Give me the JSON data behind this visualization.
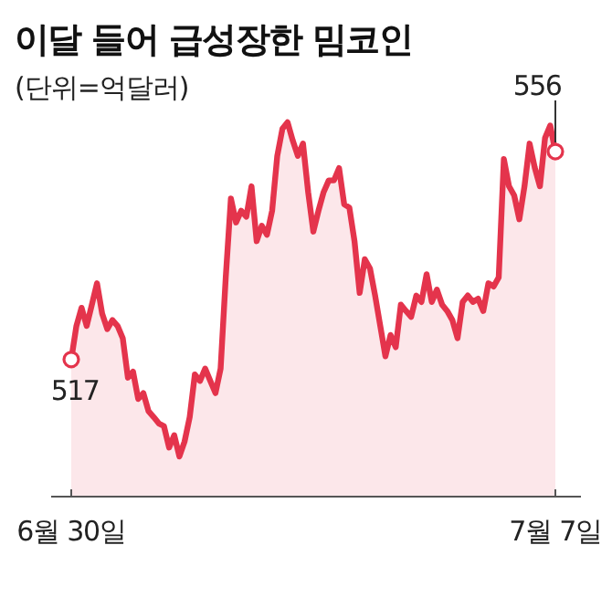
{
  "chart_data": {
    "type": "area",
    "title": "이달 들어 급성장한 밈코인",
    "subtitle": "(단위=억달러)",
    "categories": [
      "6월 30일",
      null,
      null,
      null,
      null,
      null,
      null,
      null,
      null,
      null,
      null,
      null,
      null,
      null,
      null,
      null,
      null,
      null,
      null,
      null,
      null,
      null,
      null,
      null,
      null,
      null,
      null,
      null,
      null,
      null,
      null,
      null,
      null,
      null,
      null,
      null,
      null,
      null,
      null,
      null,
      null,
      null,
      null,
      null,
      null,
      null,
      null,
      null,
      null,
      null,
      null,
      null,
      null,
      null,
      null,
      null,
      null,
      null,
      null,
      null,
      null,
      null,
      null,
      null,
      null,
      null,
      null,
      null,
      null,
      null,
      null,
      null,
      null,
      null,
      null,
      null,
      null,
      null,
      null,
      null,
      null,
      null,
      null,
      null,
      null,
      null,
      null,
      null,
      null,
      null,
      null,
      null,
      null,
      null,
      "7월 7일"
    ],
    "values": [
      517.0,
      523.3,
      526.7,
      523.3,
      527.3,
      531.3,
      525.6,
      522.7,
      524.4,
      523.3,
      521.0,
      513.6,
      514.7,
      509.6,
      510.7,
      507.3,
      506.2,
      505.0,
      504.5,
      500.5,
      502.8,
      498.8,
      501.6,
      506.2,
      514.2,
      513.0,
      515.3,
      513.0,
      510.7,
      515.3,
      532.4,
      547.2,
      542.7,
      544.9,
      543.8,
      549.5,
      539.2,
      542.1,
      540.4,
      544.9,
      555.2,
      560.3,
      561.5,
      558.1,
      555.2,
      557.5,
      548.4,
      541.0,
      544.9,
      548.4,
      550.6,
      550.6,
      552.9,
      546.1,
      545.5,
      539.2,
      529.5,
      535.8,
      534.1,
      529.0,
      523.3,
      517.6,
      521.6,
      519.3,
      527.3,
      526.1,
      525.0,
      529.0,
      527.8,
      533.0,
      527.8,
      530.1,
      527.3,
      526.1,
      524.4,
      521.0,
      527.8,
      529.0,
      527.8,
      528.4,
      526.1,
      531.3,
      530.7,
      532.4,
      554.6,
      549.5,
      547.8,
      543.3,
      549.5,
      557.5,
      553.0,
      549.5,
      558.6,
      560.9,
      556.0
    ],
    "value_labels": [
      "517",
      null,
      null,
      null,
      null,
      null,
      null,
      null,
      null,
      null,
      null,
      null,
      null,
      null,
      null,
      null,
      null,
      null,
      null,
      null,
      null,
      null,
      null,
      null,
      null,
      null,
      null,
      null,
      null,
      null,
      null,
      null,
      null,
      null,
      null,
      null,
      null,
      null,
      null,
      null,
      null,
      null,
      null,
      null,
      null,
      null,
      null,
      null,
      null,
      null,
      null,
      null,
      null,
      null,
      null,
      null,
      null,
      null,
      null,
      null,
      null,
      null,
      null,
      null,
      null,
      null,
      null,
      null,
      null,
      null,
      null,
      null,
      null,
      null,
      null,
      null,
      null,
      null,
      null,
      null,
      null,
      null,
      null,
      null,
      null,
      null,
      null,
      null,
      null,
      null,
      null,
      null,
      null,
      null,
      "556"
    ],
    "color": "#e4344c",
    "tick_labels": "x"
  }
}
